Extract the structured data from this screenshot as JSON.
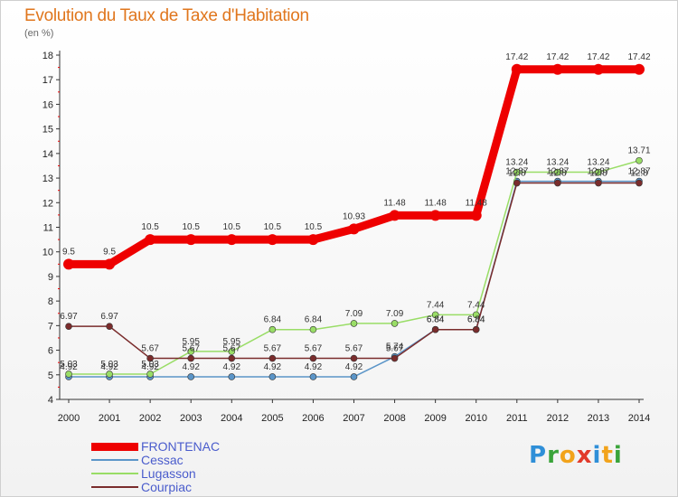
{
  "title": "Evolution du Taux de Taxe d'Habitation",
  "subtitle": "(en %)",
  "logo": {
    "letters": [
      "P",
      "r",
      "o",
      "x",
      "i",
      "t",
      "i"
    ],
    "colors": [
      "#2f8fd8",
      "#3aa43a",
      "#f2a31b",
      "#e23a2a",
      "#2f8fd8",
      "#f2a31b",
      "#3aa43a"
    ]
  },
  "chart_data": {
    "type": "line",
    "x": [
      "2000",
      "2001",
      "2002",
      "2003",
      "2004",
      "2005",
      "2006",
      "2007",
      "2008",
      "2009",
      "2010",
      "2011",
      "2012",
      "2013",
      "2014"
    ],
    "ylim": [
      4,
      18
    ],
    "yticks": [
      4,
      5,
      6,
      7,
      8,
      9,
      10,
      11,
      12,
      13,
      14,
      15,
      16,
      17,
      18
    ],
    "grid": false,
    "legend_position": "bottom-left",
    "series": [
      {
        "name": "FRONTENAC",
        "color": "#ee0000",
        "values": [
          9.5,
          9.5,
          10.5,
          10.5,
          10.5,
          10.5,
          10.5,
          10.93,
          11.48,
          11.48,
          11.48,
          17.42,
          17.42,
          17.42,
          17.42
        ],
        "labels": [
          "9.5",
          "9.5",
          "10.5",
          "10.5",
          "10.5",
          "10.5",
          "10.5",
          "10.93",
          "11.48",
          "11.48",
          "11.48",
          "17.42",
          "17.42",
          "17.42",
          "17.42"
        ]
      },
      {
        "name": "Cessac",
        "color": "#5b95c8",
        "values": [
          4.92,
          4.92,
          4.92,
          4.92,
          4.92,
          4.92,
          4.92,
          4.92,
          5.74,
          6.84,
          6.84,
          12.87,
          12.87,
          12.87,
          12.87
        ],
        "labels": [
          "4.92",
          "4.92",
          "4.92",
          "4.92",
          "4.92",
          "4.92",
          "4.92",
          "4.92",
          "5.74",
          "6.84",
          "6.84",
          "12.87",
          "12.87",
          "12.87",
          "12.87"
        ]
      },
      {
        "name": "Lugasson",
        "color": "#99dd66",
        "values": [
          5.03,
          5.03,
          5.03,
          5.95,
          5.95,
          6.84,
          6.84,
          7.09,
          7.09,
          7.44,
          7.44,
          13.24,
          13.24,
          13.24,
          13.71
        ],
        "labels": [
          "5.03",
          "5.03",
          "5.03",
          "5.95",
          "5.95",
          "6.84",
          "6.84",
          "7.09",
          "7.09",
          "7.44",
          "7.44",
          "13.24",
          "13.24",
          "13.24",
          "13.71"
        ]
      },
      {
        "name": "Courpiac",
        "color": "#7a2c2c",
        "values": [
          6.97,
          6.97,
          5.67,
          5.67,
          5.67,
          5.67,
          5.67,
          5.67,
          5.67,
          6.84,
          6.84,
          12.8,
          12.8,
          12.8,
          12.8
        ],
        "labels": [
          "6.97",
          "6.97",
          "5.67",
          "5.67",
          "5.67",
          "5.67",
          "5.67",
          "5.67",
          "5.67",
          "6.84",
          "6.84",
          "12.8",
          "12.8",
          "12.8",
          "12.8"
        ]
      }
    ]
  }
}
